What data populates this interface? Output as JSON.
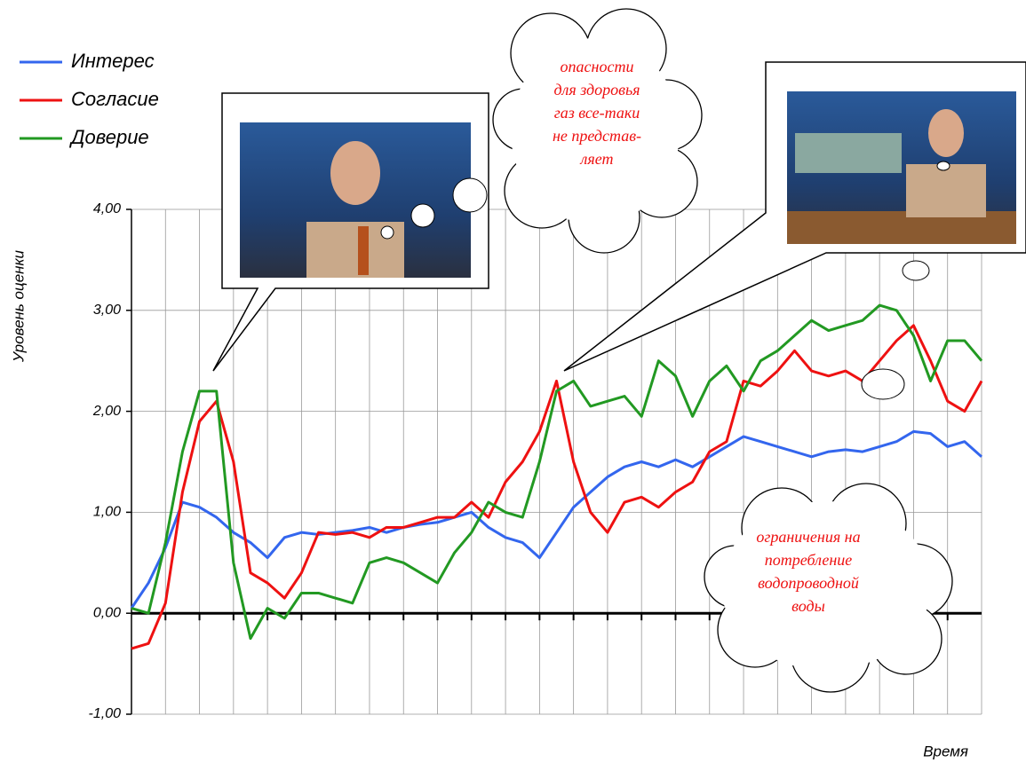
{
  "chart_data": {
    "type": "line",
    "x_label": "Время",
    "y_label": "Уровень оценки",
    "ylim": [
      -1,
      4
    ],
    "yticks": [
      {
        "value": -1,
        "label": "-1,00"
      },
      {
        "value": 0,
        "label": "0,00"
      },
      {
        "value": 1,
        "label": "1,00"
      },
      {
        "value": 2,
        "label": "2,00"
      },
      {
        "value": 3,
        "label": "3,00"
      },
      {
        "value": 4,
        "label": "4,00"
      }
    ],
    "grid": true,
    "legend": "top-left",
    "series": [
      {
        "name": "Интерес",
        "color": "#3366ee",
        "values": [
          0.05,
          0.3,
          0.65,
          1.1,
          1.05,
          0.95,
          0.8,
          0.7,
          0.55,
          0.75,
          0.8,
          0.78,
          0.8,
          0.82,
          0.85,
          0.8,
          0.85,
          0.88,
          0.9,
          0.95,
          1.0,
          0.85,
          0.75,
          0.7,
          0.55,
          0.8,
          1.05,
          1.2,
          1.35,
          1.45,
          1.5,
          1.45,
          1.52,
          1.45,
          1.55,
          1.65,
          1.75,
          1.7,
          1.65,
          1.6,
          1.55,
          1.6,
          1.62,
          1.6,
          1.65,
          1.7,
          1.8,
          1.78,
          1.65,
          1.7,
          1.55
        ]
      },
      {
        "name": "Согласие",
        "color": "#ee1111",
        "values": [
          -0.35,
          -0.3,
          0.1,
          1.2,
          1.9,
          2.1,
          1.5,
          0.4,
          0.3,
          0.15,
          0.4,
          0.8,
          0.78,
          0.8,
          0.75,
          0.85,
          0.85,
          0.9,
          0.95,
          0.95,
          1.1,
          0.95,
          1.3,
          1.5,
          1.8,
          2.3,
          1.5,
          1.0,
          0.8,
          1.1,
          1.15,
          1.05,
          1.2,
          1.3,
          1.6,
          1.7,
          2.3,
          2.25,
          2.4,
          2.6,
          2.4,
          2.35,
          2.4,
          2.3,
          2.5,
          2.7,
          2.85,
          2.5,
          2.1,
          2.0,
          2.3
        ]
      },
      {
        "name": "Доверие",
        "color": "#229922",
        "values": [
          0.05,
          0.0,
          0.7,
          1.6,
          2.2,
          2.2,
          0.5,
          -0.25,
          0.05,
          -0.05,
          0.2,
          0.2,
          0.15,
          0.1,
          0.5,
          0.55,
          0.5,
          0.4,
          0.3,
          0.6,
          0.8,
          1.1,
          1.0,
          0.95,
          1.5,
          2.2,
          2.3,
          2.05,
          2.1,
          2.15,
          1.95,
          2.5,
          2.35,
          1.95,
          2.3,
          2.45,
          2.2,
          2.5,
          2.6,
          2.75,
          2.9,
          2.8,
          2.85,
          2.9,
          3.05,
          3.0,
          2.75,
          2.3,
          2.7,
          2.7,
          2.5
        ]
      }
    ],
    "annotations": [
      [
        "опасности",
        "для здоровья",
        "газ все-таки",
        "не представ-",
        "ляет"
      ],
      [
        "ограничения на",
        "потребление",
        "водопроводной",
        "воды"
      ]
    ]
  }
}
